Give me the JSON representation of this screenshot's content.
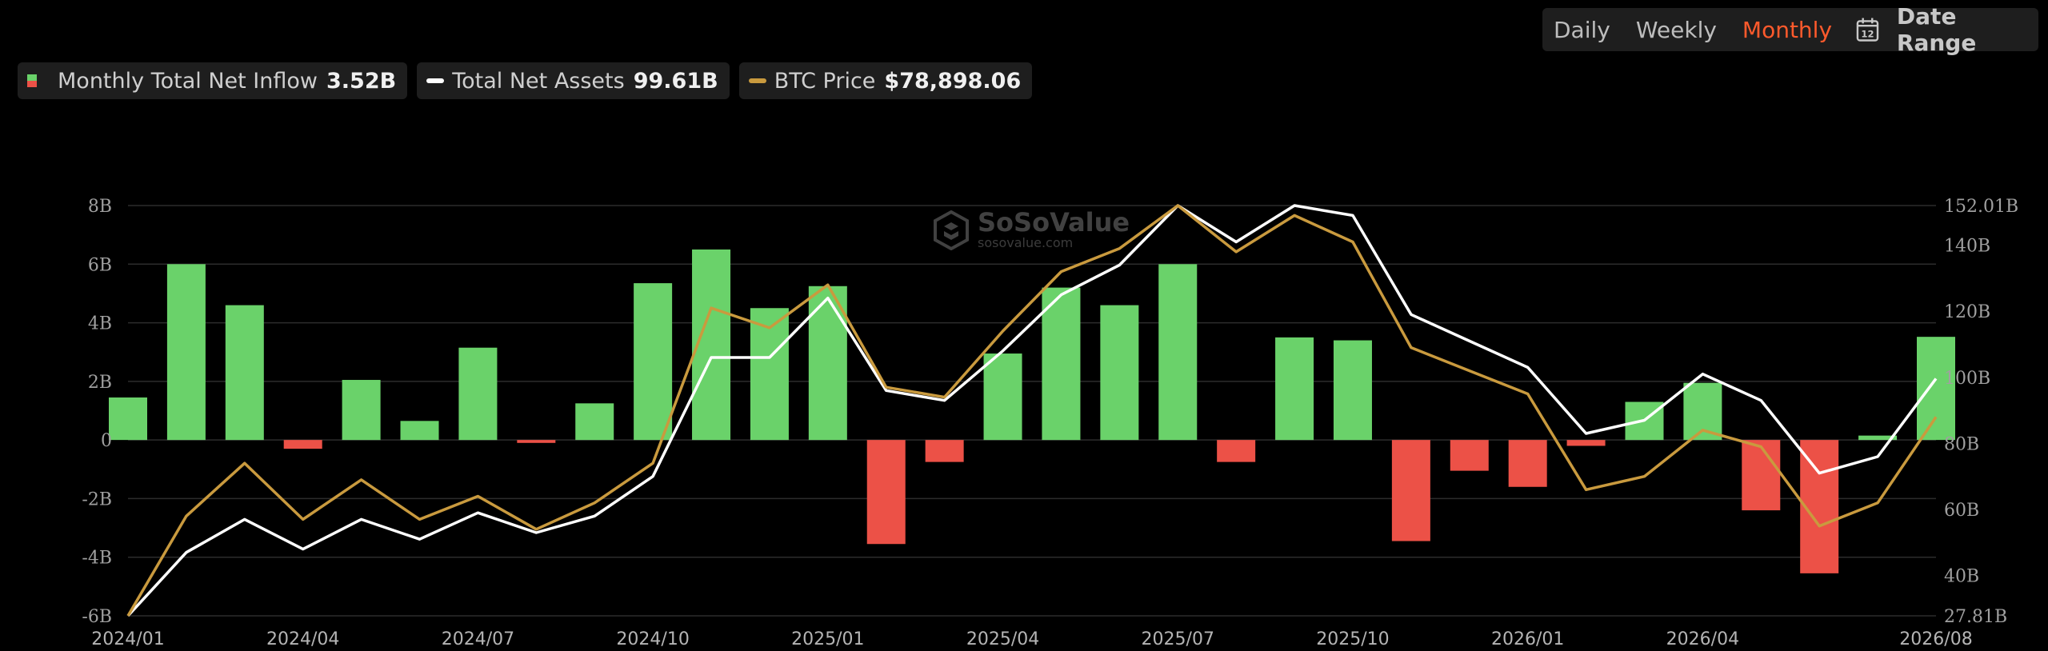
{
  "legend": {
    "inflow_label": "Monthly Total Net Inflow",
    "inflow_value": "3.52B",
    "assets_label": "Total Net Assets",
    "assets_value": "99.61B",
    "btc_label": "BTC Price",
    "btc_value": "$78,898.06"
  },
  "period": {
    "daily": "Daily",
    "weekly": "Weekly",
    "monthly": "Monthly",
    "active": "monthly"
  },
  "date_range": {
    "label": "Date Range",
    "icon": "calendar-icon",
    "icon_text": "12"
  },
  "watermark": {
    "name": "SoSoValue",
    "url": "sosovalue.com"
  },
  "colors": {
    "positive": "#6ad26a",
    "negative": "#ec5147",
    "assets_line": "#ffffff",
    "btc_line": "#c99a3e",
    "accent": "#ff5a2c"
  },
  "chart_data": {
    "type": "bar",
    "title": "",
    "months": [
      "2024/01",
      "2024/02",
      "2024/03",
      "2024/04",
      "2024/05",
      "2024/06",
      "2024/07",
      "2024/08",
      "2024/09",
      "2024/10",
      "2024/11",
      "2024/12",
      "2025/01",
      "2025/02",
      "2025/03",
      "2025/04",
      "2025/05",
      "2025/06",
      "2025/07",
      "2025/08",
      "2025/09",
      "2025/10",
      "2025/11",
      "2025/12",
      "2026/01",
      "2026/02",
      "2026/03",
      "2026/04",
      "2026/05",
      "2026/06",
      "2026/07",
      "2026/08"
    ],
    "x_tick_labels": [
      "2024/01",
      "2024/04",
      "2024/07",
      "2024/10",
      "2025/01",
      "2025/04",
      "2025/07",
      "2025/10",
      "2026/01",
      "2026/04",
      "2026/08"
    ],
    "y_left": {
      "ticks": [
        "8B",
        "6B",
        "4B",
        "2B",
        "0",
        "-2B",
        "-4B",
        "-6B"
      ],
      "min": -6,
      "max": 8
    },
    "y_right": {
      "ticks": [
        "152.01B",
        "140B",
        "120B",
        "100B",
        "80B",
        "60B",
        "40B",
        "27.81B"
      ],
      "min": 27.81,
      "max": 152.01
    },
    "series": [
      {
        "name": "Monthly Total Net Inflow",
        "type": "bar",
        "axis": "left",
        "values": [
          1.45,
          6.0,
          4.6,
          -0.3,
          2.05,
          0.65,
          3.15,
          -0.1,
          1.25,
          5.35,
          6.5,
          4.5,
          5.25,
          -3.55,
          -0.75,
          2.95,
          5.2,
          4.6,
          6.0,
          -0.75,
          3.5,
          3.4,
          -3.45,
          -1.05,
          -1.6,
          -0.2,
          1.3,
          1.95,
          -2.4,
          -4.55,
          0.15,
          3.52
        ]
      },
      {
        "name": "Total Net Assets",
        "type": "line",
        "axis": "right",
        "values": [
          27.81,
          47,
          57,
          48,
          57,
          51,
          59,
          53,
          58,
          70,
          106,
          106,
          124,
          96,
          93,
          108,
          125,
          134,
          152,
          141,
          152,
          149,
          119,
          111,
          103,
          83,
          87,
          101,
          93,
          71,
          76,
          99.61
        ]
      },
      {
        "name": "BTC Price",
        "type": "line",
        "axis": "right",
        "values": [
          27.81,
          58,
          74,
          57,
          69,
          57,
          64,
          54,
          62,
          74,
          121,
          115,
          128,
          97,
          94,
          114,
          132,
          139,
          152,
          138,
          149,
          141,
          109,
          102,
          95,
          66,
          70,
          84,
          79,
          55,
          62,
          88
        ]
      }
    ]
  }
}
